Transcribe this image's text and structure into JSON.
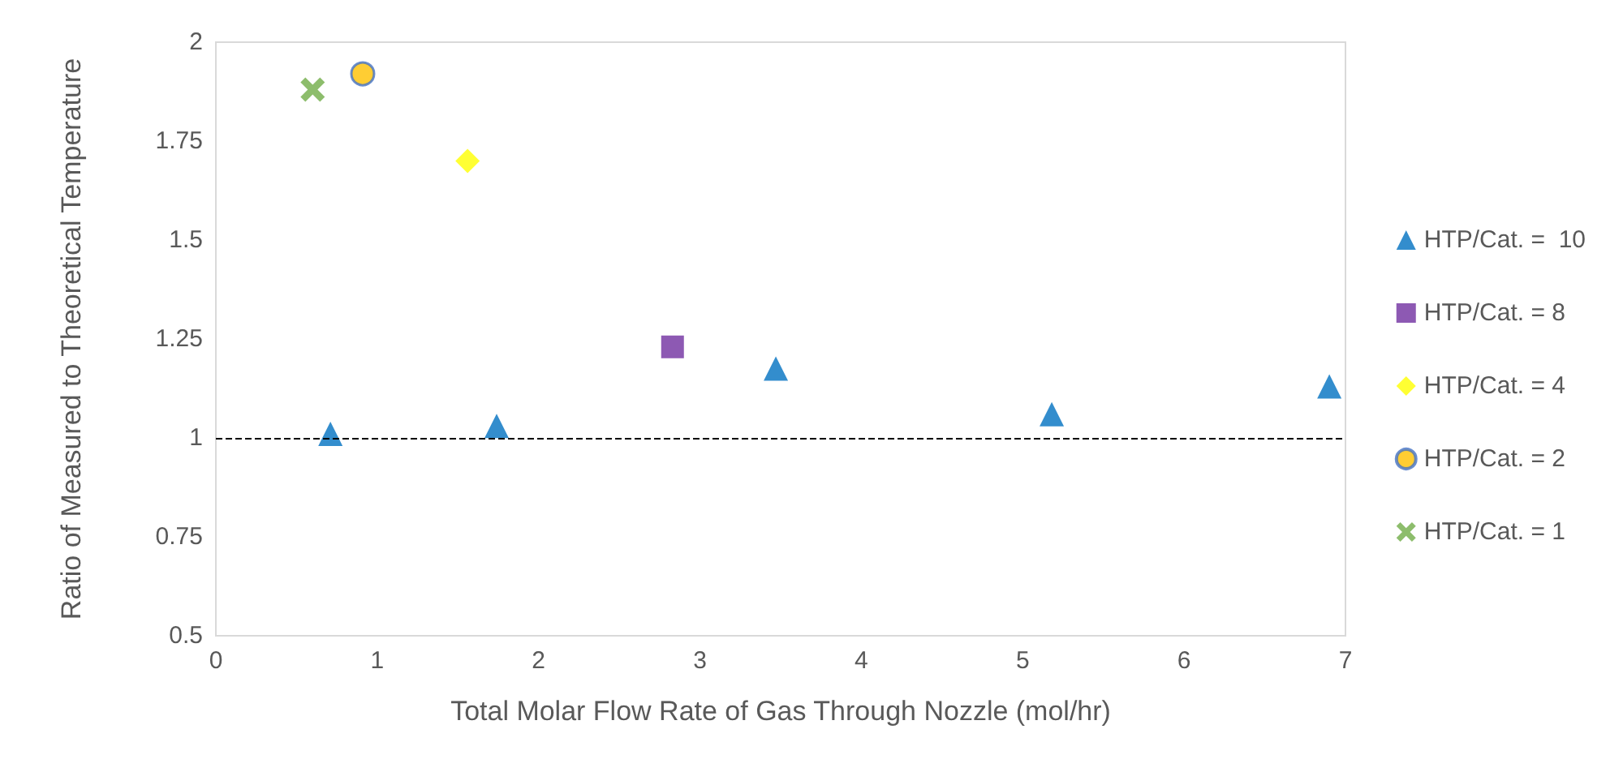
{
  "chart_data": {
    "type": "scatter",
    "xlabel": "Total Molar Flow Rate of Gas Through Nozzle (mol/hr)",
    "ylabel": "Ratio of Measured to Theoretical Temperature",
    "xlim": [
      0,
      7
    ],
    "xticks": [
      0,
      1,
      2,
      3,
      4,
      5,
      6,
      7
    ],
    "ylim": [
      0.5,
      2
    ],
    "yticks": [
      0.5,
      0.75,
      1,
      1.25,
      1.5,
      1.75,
      2
    ],
    "grid": false,
    "legend": "right",
    "series": [
      {
        "name": "HTP/Cat. =  10",
        "color": "#0070c0",
        "marker": "triangle",
        "x": [
          0.71,
          1.74,
          3.47,
          5.18,
          6.9
        ],
        "values": [
          1.01,
          1.03,
          1.175,
          1.06,
          1.13
        ]
      },
      {
        "name": "HTP/Cat. = 8",
        "color": "#7030a0",
        "marker": "square",
        "x": [
          2.83
        ],
        "values": [
          1.23
        ]
      },
      {
        "name": "HTP/Cat. = 4",
        "color": "#ffff00",
        "marker": "diamond",
        "x": [
          1.56
        ],
        "values": [
          1.7
        ]
      },
      {
        "name": "HTP/Cat. = 2",
        "color": "#ffc000",
        "marker": "circle",
        "x": [
          0.91
        ],
        "values": [
          1.92
        ]
      },
      {
        "name": "HTP/Cat. = 1",
        "color": "#70ad47",
        "marker": "cross",
        "x": [
          0.6
        ],
        "values": [
          1.88
        ]
      }
    ],
    "ref_lines": [
      {
        "axis": "y",
        "value": 1,
        "label": null,
        "color": "#000000",
        "line_style": "dashed"
      }
    ]
  }
}
